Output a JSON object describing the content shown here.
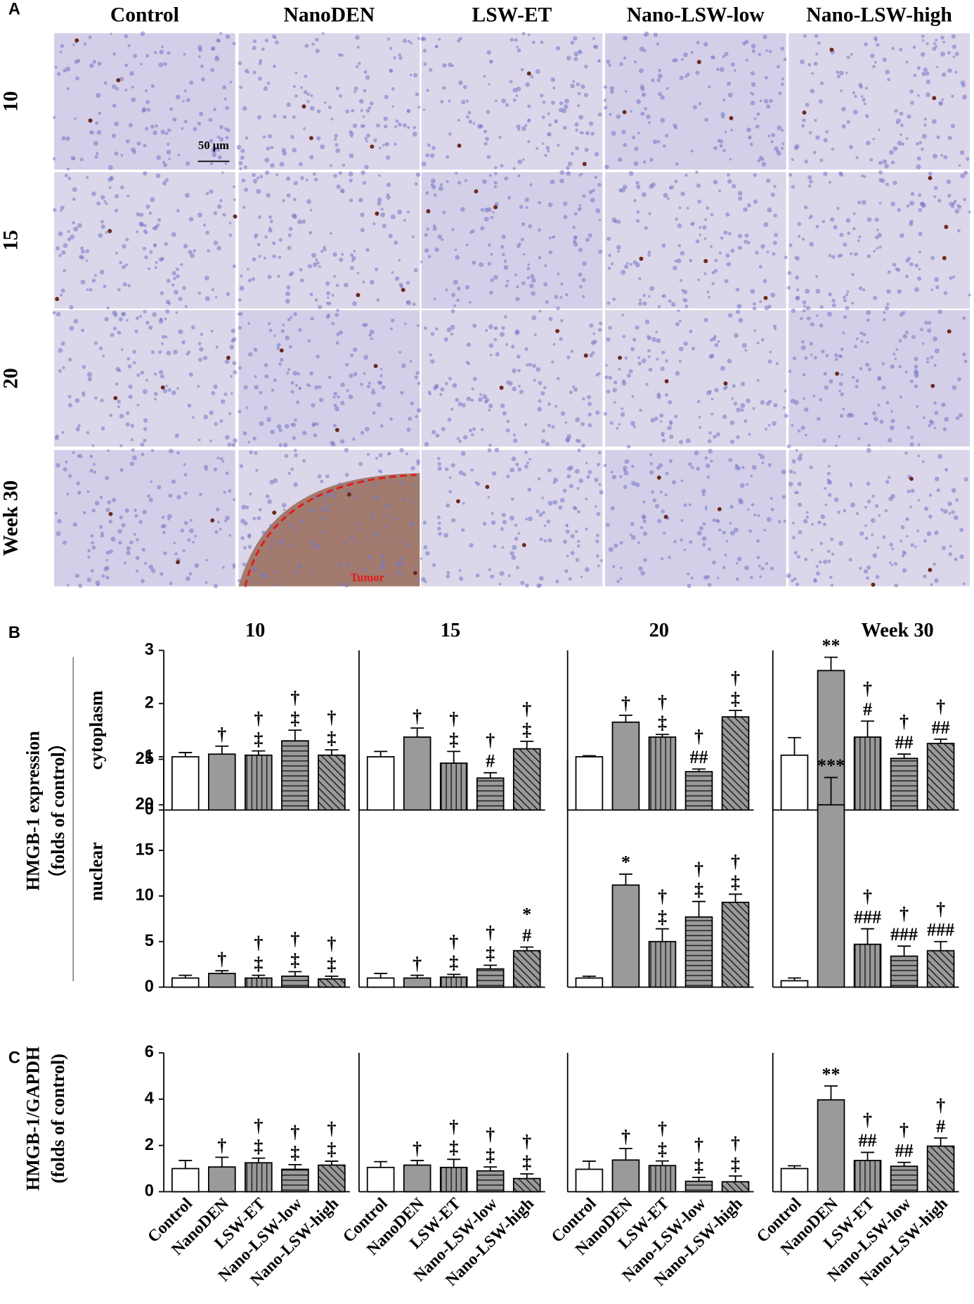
{
  "panel_a": {
    "label": "A",
    "columns": [
      "Control",
      "NanoDEN",
      "LSW-ET",
      "Nano-LSW-low",
      "Nano-LSW-high"
    ],
    "rows": [
      "10",
      "15",
      "20",
      "Week 30"
    ],
    "scale_bar": "50 μm",
    "annotation": "Tumor"
  },
  "panel_labels": {
    "b": "B",
    "c": "C"
  },
  "y_labels": {
    "b": [
      "HMGB-1 expression",
      "（folds of control）"
    ],
    "b_rows": [
      "cytoplasm",
      "nuclear"
    ],
    "c": [
      "HMGB-1/GAPDH",
      "(folds of control)"
    ]
  },
  "bar_fills": [
    "#ffffff",
    "#9a9a9a",
    "#9a9a9a",
    "#9a9a9a",
    "#9a9a9a"
  ],
  "bar_hatches": [
    null,
    null,
    "vertical",
    "horizontal",
    "diagonal"
  ],
  "chart_data": [
    {
      "type": "bar",
      "title": "10",
      "values": [
        1.0,
        1.05,
        1.03,
        1.3,
        1.03
      ],
      "errors": [
        0.08,
        0.15,
        0.08,
        0.2,
        0.1
      ],
      "annotations": [
        [],
        [
          "†"
        ],
        [
          "†",
          "‡"
        ],
        [
          "†",
          "‡"
        ],
        [
          "†",
          "‡"
        ]
      ],
      "ylim": [
        0,
        3
      ],
      "yticks": [
        0,
        1,
        2,
        3
      ]
    },
    {
      "type": "bar",
      "title": "15",
      "values": [
        1.0,
        1.37,
        0.88,
        0.6,
        1.15
      ],
      "errors": [
        0.1,
        0.17,
        0.22,
        0.1,
        0.14
      ],
      "annotations": [
        [],
        [
          "†"
        ],
        [
          "†",
          "‡"
        ],
        [
          "†",
          "#"
        ],
        [
          "†",
          "‡"
        ]
      ],
      "ylim": [
        0,
        3
      ]
    },
    {
      "type": "bar",
      "title": "20",
      "values": [
        1.0,
        1.65,
        1.37,
        0.72,
        1.75
      ],
      "errors": [
        0.02,
        0.13,
        0.05,
        0.05,
        0.12
      ],
      "annotations": [
        [],
        [
          "†"
        ],
        [
          "†",
          "‡"
        ],
        [
          "†",
          "##"
        ],
        [
          "†",
          "‡"
        ]
      ],
      "ylim": [
        0,
        3
      ]
    },
    {
      "type": "bar",
      "title": "Week 30",
      "values": [
        1.03,
        2.62,
        1.37,
        0.97,
        1.25
      ],
      "errors": [
        0.33,
        0.25,
        0.3,
        0.08,
        0.08
      ],
      "annotations": [
        [],
        [
          "**"
        ],
        [
          "†",
          "#"
        ],
        [
          "†",
          "##"
        ],
        [
          "†",
          "##"
        ]
      ],
      "ylim": [
        0,
        3
      ]
    },
    {
      "type": "bar",
      "values": [
        1.0,
        1.5,
        1.0,
        1.2,
        0.9
      ],
      "errors": [
        0.3,
        0.3,
        0.3,
        0.5,
        0.3
      ],
      "annotations": [
        [],
        [
          "†"
        ],
        [
          "†",
          "‡"
        ],
        [
          "†",
          "‡"
        ],
        [
          "†",
          "‡"
        ]
      ],
      "ylim": [
        0,
        25
      ],
      "yticks": [
        0,
        5,
        10,
        15,
        20,
        25
      ]
    },
    {
      "type": "bar",
      "values": [
        1.0,
        1.0,
        1.1,
        2.0,
        4.0
      ],
      "errors": [
        0.5,
        0.3,
        0.3,
        0.4,
        0.4
      ],
      "annotations": [
        [],
        [
          "†"
        ],
        [
          "†",
          "‡"
        ],
        [
          "†",
          "‡"
        ],
        [
          "*",
          "#"
        ]
      ],
      "ylim": [
        0,
        25
      ]
    },
    {
      "type": "bar",
      "values": [
        1.0,
        11.2,
        5.0,
        7.7,
        9.3
      ],
      "errors": [
        0.2,
        1.2,
        1.4,
        1.7,
        0.9
      ],
      "annotations": [
        [],
        [
          "*"
        ],
        [
          "†",
          "‡"
        ],
        [
          "†",
          "‡"
        ],
        [
          "†",
          "‡"
        ]
      ],
      "ylim": [
        0,
        25
      ]
    },
    {
      "type": "bar",
      "values": [
        0.7,
        20.0,
        4.7,
        3.4,
        4.0
      ],
      "errors": [
        0.3,
        3.0,
        1.7,
        1.1,
        1.0
      ],
      "annotations": [
        [],
        [
          "***"
        ],
        [
          "†",
          "###"
        ],
        [
          "†",
          "###"
        ],
        [
          "†",
          "###"
        ]
      ],
      "ylim": [
        0,
        25
      ]
    },
    {
      "type": "bar",
      "categories": [
        "Control",
        "NanoDEN",
        "LSW-ET",
        "Nano-LSW-low",
        "Nano-LSW-high"
      ],
      "values": [
        1.0,
        1.07,
        1.25,
        0.97,
        1.15
      ],
      "errors": [
        0.35,
        0.42,
        0.2,
        0.2,
        0.17
      ],
      "annotations": [
        [],
        [
          "†"
        ],
        [
          "†",
          "‡"
        ],
        [
          "†",
          "‡"
        ],
        [
          "†",
          "‡"
        ]
      ],
      "ylim": [
        0,
        6
      ],
      "yticks": [
        0,
        2,
        4,
        6
      ]
    },
    {
      "type": "bar",
      "categories": [
        "Control",
        "NanoDEN",
        "LSW-ET",
        "Nano-LSW-low",
        "Nano-LSW-high"
      ],
      "values": [
        1.05,
        1.15,
        1.05,
        0.9,
        0.57
      ],
      "errors": [
        0.25,
        0.2,
        0.35,
        0.17,
        0.2
      ],
      "annotations": [
        [],
        [
          "†"
        ],
        [
          "†",
          "‡"
        ],
        [
          "†",
          "‡"
        ],
        [
          "†",
          "‡"
        ]
      ],
      "ylim": [
        0,
        6
      ]
    },
    {
      "type": "bar",
      "categories": [
        "Control",
        "NanoDEN",
        "LSW-ET",
        "Nano-LSW-low",
        "Nano-LSW-high"
      ],
      "values": [
        0.97,
        1.37,
        1.13,
        0.45,
        0.43
      ],
      "errors": [
        0.35,
        0.5,
        0.2,
        0.17,
        0.25
      ],
      "annotations": [
        [],
        [
          "†"
        ],
        [
          "†",
          "‡"
        ],
        [
          "†",
          "‡"
        ],
        [
          "†",
          "‡"
        ]
      ],
      "ylim": [
        0,
        6
      ]
    },
    {
      "type": "bar",
      "categories": [
        "Control",
        "NanoDEN",
        "LSW-ET",
        "Nano-LSW-low",
        "Nano-LSW-high"
      ],
      "values": [
        1.0,
        3.97,
        1.35,
        1.1,
        1.97
      ],
      "errors": [
        0.12,
        0.6,
        0.35,
        0.17,
        0.35
      ],
      "annotations": [
        [],
        [
          "**"
        ],
        [
          "†",
          "##"
        ],
        [
          "†",
          "##"
        ],
        [
          "†",
          "#"
        ]
      ],
      "ylim": [
        0,
        6
      ]
    }
  ]
}
